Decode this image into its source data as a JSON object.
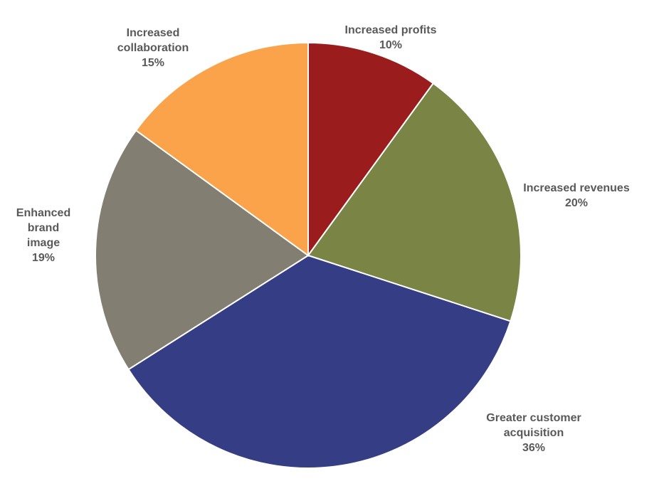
{
  "chart_data": {
    "type": "pie",
    "title": "",
    "slices": [
      {
        "name": "Increased profits",
        "value": 10,
        "label": "10%",
        "color": "#9B1C1C"
      },
      {
        "name": "Increased revenues",
        "value": 20,
        "label": "20%",
        "color": "#7A8444"
      },
      {
        "name": "Greater customer acquisition",
        "value": 36,
        "label": "36%",
        "color": "#353D84"
      },
      {
        "name": "Enhanced brand image",
        "value": 19,
        "label": "19%",
        "color": "#827E72"
      },
      {
        "name": "Increased collaboration",
        "value": 15,
        "label": "15%",
        "color": "#FAA34A"
      }
    ]
  }
}
